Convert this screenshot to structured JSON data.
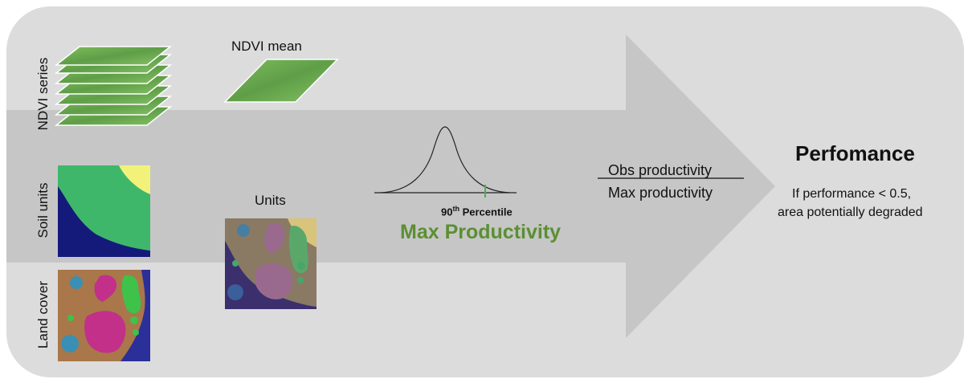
{
  "labels": {
    "ndvi_series": "NDVI series",
    "soil_units": "Soil units",
    "land_cover": "Land cover",
    "ndvi_mean": "NDVI mean",
    "units": "Units",
    "percentile_base": "90",
    "percentile_sup": "th",
    "percentile_rest": " Percentile",
    "max_productivity": "Max Productivity",
    "ratio_numerator": "Obs productivity",
    "ratio_denominator": "Max productivity",
    "performance_title": "Perfomance",
    "performance_note_line1": "If performance < 0.5,",
    "performance_note_line2": "area potentially degraded"
  },
  "colors": {
    "background_panel": "#dcdcdc",
    "arrow": "#c6c6c6",
    "ndvi_green": "#6aa84f",
    "max_productivity_text": "#5b8f33",
    "soil_navy": "#141a7a",
    "soil_green": "#3fb76b",
    "soil_yellow": "#f2f27a",
    "land_brown": "#a9774a",
    "land_magenta": "#c2308a",
    "land_blue": "#3a8fb5",
    "land_green": "#3ec24a"
  },
  "icons": [
    "layer-stack-icon",
    "ndvi-layer-icon",
    "soil-map-icon",
    "land-cover-map-icon",
    "units-overlay-map-icon",
    "bell-curve-icon"
  ]
}
